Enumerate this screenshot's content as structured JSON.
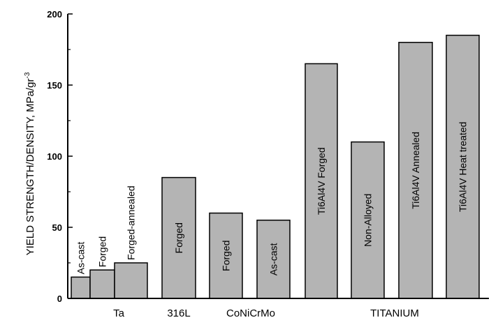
{
  "chart_data": {
    "type": "bar",
    "ylabel": "YIELD STRENGTH/DENSITY, MPa/gr",
    "ylabel_superscript": "-3",
    "ylim": [
      0,
      200
    ],
    "yticks": [
      0,
      50,
      100,
      150,
      200
    ],
    "grid": false,
    "bar_color": "#b4b4b4",
    "bars": [
      {
        "label": "As-cast",
        "value": 15,
        "group": "Ta",
        "label_position": "above"
      },
      {
        "label": "Forged",
        "value": 20,
        "group": "Ta",
        "label_position": "above"
      },
      {
        "label": "Forged-annealed",
        "value": 25,
        "group": "Ta",
        "label_position": "above"
      },
      {
        "label": "Forged",
        "value": 85,
        "group": "316L",
        "label_position": "inside"
      },
      {
        "label": "Forged",
        "value": 60,
        "group": "CoNiCrMo",
        "label_position": "inside"
      },
      {
        "label": "As-cast",
        "value": 55,
        "group": "CoNiCrMo",
        "label_position": "inside"
      },
      {
        "label": "Ti6Al4V Forged",
        "value": 165,
        "group": "TITANIUM",
        "label_position": "inside"
      },
      {
        "label": "Non-Alloyed",
        "value": 110,
        "group": "TITANIUM",
        "label_position": "inside"
      },
      {
        "label": "Ti6Al4V Annealed",
        "value": 180,
        "group": "TITANIUM",
        "label_position": "inside"
      },
      {
        "label": "Ti6Al4V Heat treated",
        "value": 185,
        "group": "TITANIUM",
        "label_position": "inside"
      }
    ],
    "groups": [
      "Ta",
      "316L",
      "CoNiCrMo",
      "TITANIUM"
    ]
  }
}
